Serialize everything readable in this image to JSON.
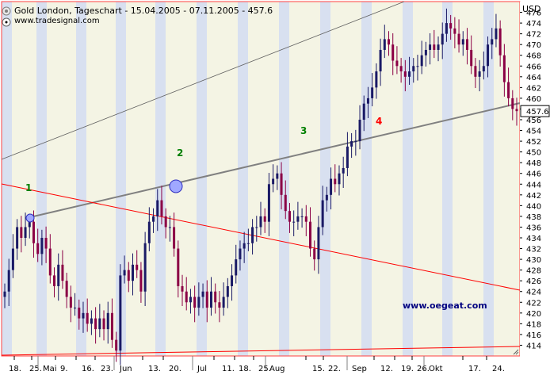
{
  "chart_data": {
    "type": "candlestick",
    "title": "Gold London, Tageschart - 15.04.2005 - 07.11.2005 - 457.6",
    "source": "www.tradesignal.com",
    "currency_label": "USD",
    "last_price": "457.6",
    "watermark": "www.oegeat.com",
    "y_axis": {
      "min": 412,
      "max": 478,
      "tick_labels": [
        "414",
        "416",
        "418",
        "420",
        "422",
        "424",
        "426",
        "428",
        "430",
        "432",
        "434",
        "436",
        "438",
        "440",
        "442",
        "444",
        "446",
        "448",
        "450",
        "452",
        "454",
        "456",
        "458",
        "460",
        "462",
        "464",
        "466",
        "468",
        "470",
        "472",
        "474",
        "476"
      ]
    },
    "x_axis": {
      "day_labels": [
        "18.",
        "25.",
        "9.",
        "16.",
        "23.",
        "13.",
        "20.",
        "11.",
        "18.",
        "25.",
        "15.",
        "22.",
        "12.",
        "19.",
        "26.",
        "17.",
        "24."
      ],
      "month_labels": [
        "Mai",
        "Jun",
        "Jul",
        "Aug",
        "Sep",
        "Okt"
      ]
    },
    "wave_labels": [
      {
        "label": "1",
        "color": "#008000"
      },
      {
        "label": "2",
        "color": "#008000"
      },
      {
        "label": "3",
        "color": "#008000"
      },
      {
        "label": "4",
        "color": "#ff0000"
      }
    ],
    "closes": [
      424,
      428,
      432,
      436,
      434,
      436,
      437,
      433,
      431,
      434,
      432,
      427,
      425,
      429,
      426,
      423,
      421,
      421,
      419,
      420,
      418,
      419,
      417,
      419,
      417,
      420,
      415,
      413,
      427,
      428,
      426,
      429,
      428,
      424,
      433,
      437,
      438,
      441,
      438,
      436,
      436,
      432,
      425,
      424,
      422,
      423,
      421,
      423,
      424,
      421,
      424,
      422,
      421,
      423,
      425,
      427,
      430,
      432,
      433,
      433,
      436,
      436,
      438,
      437,
      444,
      445,
      446,
      442,
      439,
      437,
      437,
      438,
      438,
      437,
      432,
      430,
      436,
      441,
      442,
      445,
      444,
      446,
      447,
      451,
      452,
      452,
      456,
      459,
      460,
      462,
      465,
      469,
      471,
      470,
      467,
      466,
      465,
      464,
      465,
      466,
      466,
      468,
      469,
      470,
      469,
      470,
      472,
      474,
      473,
      472,
      470,
      471,
      469,
      466,
      464,
      465,
      466,
      470,
      471,
      473,
      468,
      463,
      460,
      458,
      457.6
    ],
    "colors": {
      "up_bar": "#1a1a66",
      "down_bar": "#8b0045",
      "trend_line": "#808080",
      "fan_line": "#ff0000",
      "channel_line": "#606060",
      "price_axis_bg": "#ffffff",
      "stripe": "#d8e0f0",
      "stripe_alt": "#f4f4e4"
    }
  }
}
